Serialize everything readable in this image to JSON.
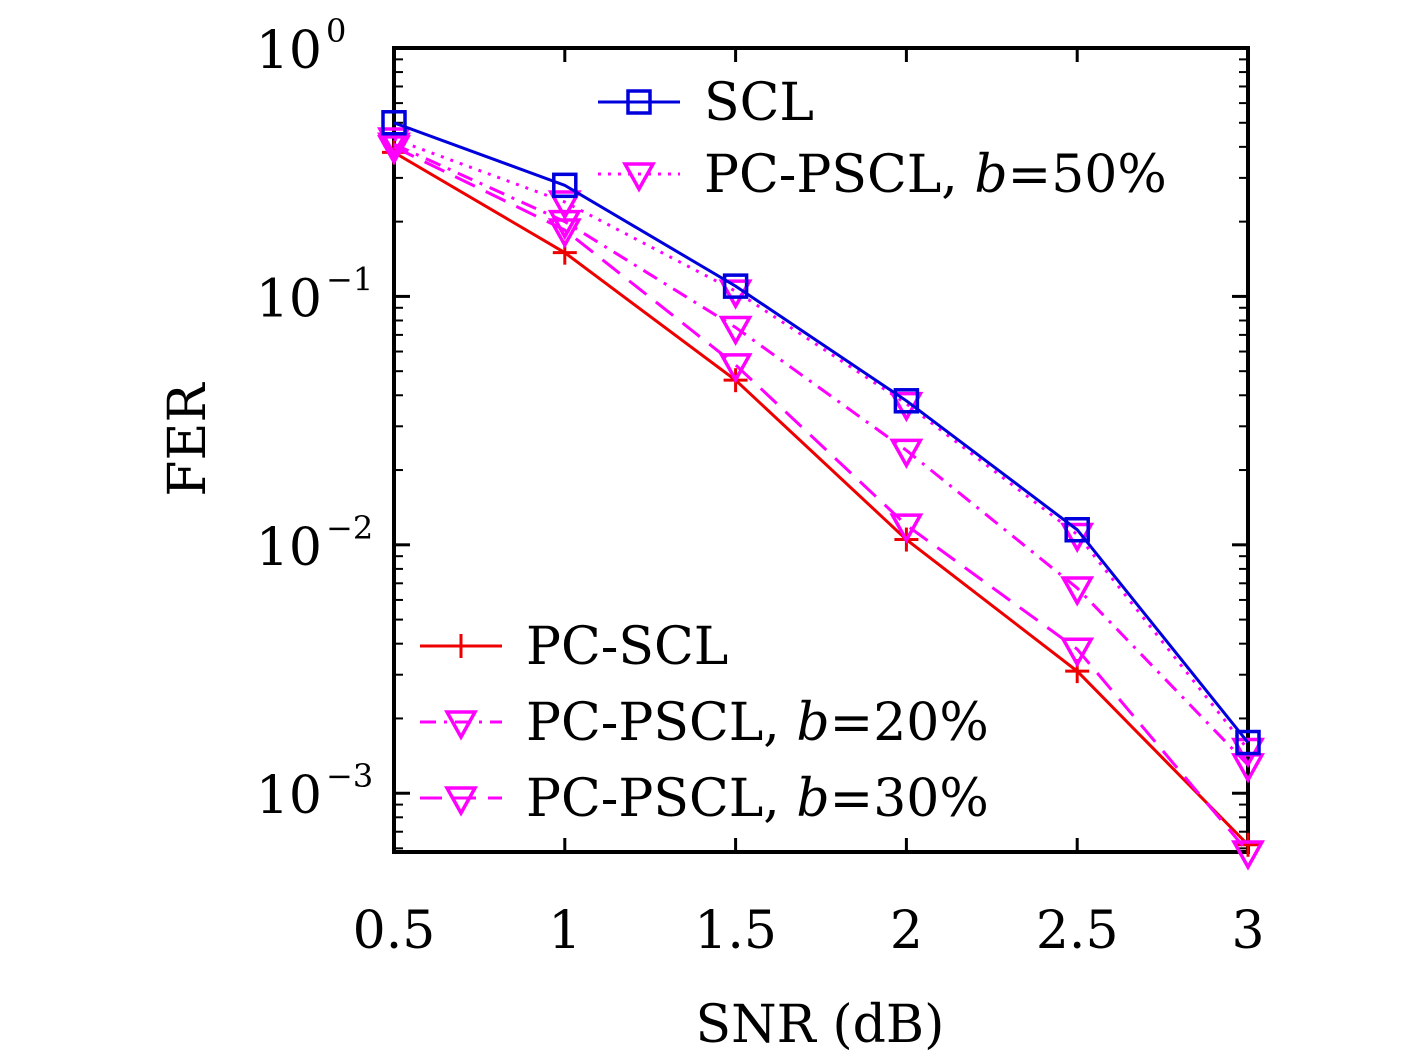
{
  "chart_data": {
    "type": "line",
    "xlabel": "SNR (dB)",
    "ylabel": "FER",
    "xlim": [
      0.5,
      3
    ],
    "ylim": [
      0.00058,
      1
    ],
    "yscale": "log",
    "grid": false,
    "xticks": [
      "0.5",
      "1",
      "1.5",
      "2",
      "2.5",
      "3"
    ],
    "yticks": [
      {
        "base": "10",
        "exp": "0",
        "value": 1
      },
      {
        "base": "10",
        "exp": "−1",
        "value": 0.1
      },
      {
        "base": "10",
        "exp": "−2",
        "value": 0.01
      },
      {
        "base": "10",
        "exp": "−3",
        "value": 0.001
      }
    ],
    "x": [
      0.5,
      1,
      1.5,
      2,
      2.5,
      3
    ],
    "series": [
      {
        "name": "SCL",
        "color": "#0000dd",
        "dash": "solid",
        "marker": "square",
        "values": [
          0.5,
          0.28,
          0.11,
          0.038,
          0.0115,
          0.0016
        ]
      },
      {
        "name": "PC-PSCL, b=50%",
        "color": "#ff00ff",
        "dash": "dotted",
        "marker": "triangle-down",
        "values": [
          0.43,
          0.24,
          0.105,
          0.037,
          0.011,
          0.0015
        ]
      },
      {
        "name": "PC-SCL",
        "color": "#ee0000",
        "dash": "solid",
        "marker": "plus",
        "values": [
          0.38,
          0.15,
          0.046,
          0.0105,
          0.0031,
          0.00062
        ]
      },
      {
        "name": "PC-PSCL, b=20%",
        "color": "#ff00ff",
        "dash": "dashdot",
        "marker": "triangle-down",
        "values": [
          0.41,
          0.2,
          0.075,
          0.024,
          0.0067,
          0.0013
        ]
      },
      {
        "name": "PC-PSCL, b=30%",
        "color": "#ff00ff",
        "dash": "dashed",
        "marker": "triangle-down",
        "values": [
          0.4,
          0.185,
          0.053,
          0.012,
          0.0038,
          0.00058
        ]
      }
    ],
    "legends": [
      {
        "position": "top",
        "entries": [
          {
            "series": 0,
            "label": "SCL"
          },
          {
            "series": 1,
            "label_pre": "PC-PSCL, ",
            "label_var": "b",
            "label_post": "=50%"
          }
        ]
      },
      {
        "position": "bottom-left",
        "entries": [
          {
            "series": 2,
            "label": "PC-SCL"
          },
          {
            "series": 3,
            "label_pre": "PC-PSCL, ",
            "label_var": "b",
            "label_post": "=20%"
          },
          {
            "series": 4,
            "label_pre": "PC-PSCL, ",
            "label_var": "b",
            "label_post": "=30%"
          }
        ]
      }
    ]
  }
}
